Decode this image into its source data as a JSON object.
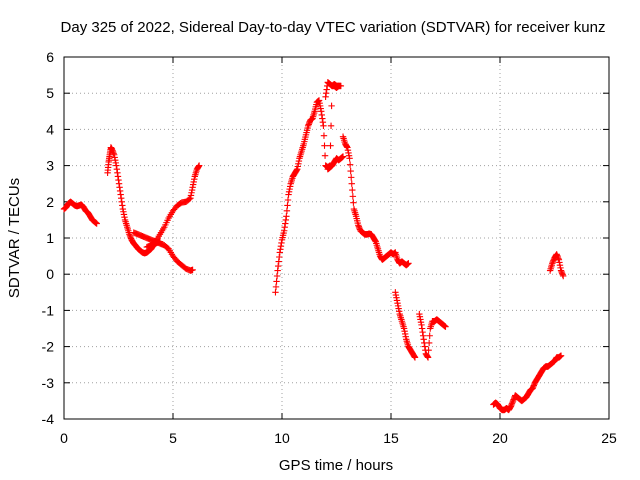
{
  "chart_data": {
    "type": "scatter",
    "title": "Day 325 of 2022, Sidereal Day-to-day VTEC variation (SDTVAR) for receiver kunz",
    "xlabel": "GPS time / hours",
    "ylabel": "SDTVAR / TECUs",
    "xlim": [
      0,
      25
    ],
    "ylim": [
      -4,
      6
    ],
    "xticks": [
      "0",
      "5",
      "10",
      "15",
      "20",
      "25"
    ],
    "yticks": [
      "-4",
      "-3",
      "-2",
      "-1",
      "0",
      "1",
      "2",
      "3",
      "4",
      "5",
      "6"
    ],
    "grid": true,
    "marker": "plus",
    "color": "#ff0000",
    "series": [
      {
        "name": "seg1",
        "x": [
          0.0,
          0.1,
          0.2,
          0.3,
          0.4,
          0.5,
          0.6,
          0.7,
          0.8,
          0.9,
          1.0,
          1.1,
          1.2,
          1.3,
          1.4,
          1.5
        ],
        "y": [
          1.8,
          1.85,
          1.95,
          2.0,
          1.95,
          1.9,
          1.88,
          1.9,
          1.92,
          1.85,
          1.75,
          1.7,
          1.6,
          1.5,
          1.45,
          1.4
        ]
      },
      {
        "name": "seg2",
        "x": [
          2.0,
          2.05,
          2.1,
          2.15,
          2.2,
          2.3,
          2.4,
          2.5,
          2.6,
          2.7,
          2.8,
          2.9,
          3.0,
          3.1,
          3.2,
          3.3,
          3.4,
          3.5,
          3.6,
          3.7,
          3.8,
          3.9,
          4.0,
          4.1,
          4.2,
          4.3,
          4.4
        ],
        "y": [
          2.8,
          3.1,
          3.3,
          3.5,
          3.45,
          3.3,
          3.0,
          2.6,
          2.2,
          1.8,
          1.5,
          1.3,
          1.1,
          0.95,
          0.85,
          0.78,
          0.7,
          0.65,
          0.6,
          0.58,
          0.6,
          0.65,
          0.7,
          0.8,
          0.85,
          0.88,
          0.9
        ]
      },
      {
        "name": "seg3",
        "x": [
          3.2,
          3.4,
          3.6,
          3.8,
          4.0,
          4.2,
          4.4,
          4.6,
          4.8,
          5.0,
          5.2,
          5.4,
          5.6,
          5.8,
          5.9
        ],
        "y": [
          1.15,
          1.1,
          1.05,
          1.0,
          0.95,
          0.9,
          0.85,
          0.8,
          0.7,
          0.5,
          0.35,
          0.25,
          0.15,
          0.1,
          0.12
        ]
      },
      {
        "name": "seg4",
        "x": [
          3.8,
          4.0,
          4.2,
          4.4,
          4.6,
          4.8,
          5.0,
          5.2,
          5.4,
          5.6,
          5.8,
          5.9,
          6.0,
          6.1,
          6.2
        ],
        "y": [
          0.75,
          0.8,
          0.9,
          1.1,
          1.3,
          1.55,
          1.75,
          1.9,
          1.98,
          2.0,
          2.1,
          2.4,
          2.7,
          2.9,
          3.0
        ]
      },
      {
        "name": "seg5",
        "x": [
          9.7,
          9.8,
          9.9,
          10.0,
          10.1,
          10.2,
          10.3,
          10.4,
          10.5,
          10.6,
          10.7,
          10.8,
          10.9,
          11.0,
          11.1,
          11.2,
          11.3,
          11.4,
          11.5,
          11.6,
          11.7,
          11.8,
          11.9,
          12.0,
          12.1,
          12.2,
          12.3,
          12.4,
          12.5,
          12.6
        ],
        "y": [
          -0.5,
          0.1,
          0.6,
          0.95,
          1.2,
          1.6,
          2.2,
          2.5,
          2.7,
          2.8,
          2.9,
          3.2,
          3.4,
          3.6,
          3.85,
          4.1,
          4.25,
          4.3,
          4.5,
          4.75,
          4.8,
          4.5,
          4.1,
          3.0,
          2.95,
          3.0,
          5.2,
          5.25,
          5.2,
          5.2
        ]
      },
      {
        "name": "seg6",
        "x": [
          12.0,
          12.1,
          12.2,
          12.3,
          12.4,
          12.5,
          12.6,
          12.7
        ],
        "y": [
          4.9,
          5.3,
          5.25,
          5.2,
          5.2,
          5.15,
          5.2,
          5.2
        ]
      },
      {
        "name": "seg7",
        "x": [
          12.1,
          12.2,
          12.3,
          12.4,
          12.5,
          12.6,
          12.7,
          12.8
        ],
        "y": [
          2.9,
          2.95,
          3.0,
          3.1,
          3.2,
          3.15,
          3.2,
          3.25
        ]
      },
      {
        "name": "seg8",
        "x": [
          12.8,
          12.9,
          13.0,
          13.1,
          13.2,
          13.3,
          13.4,
          13.5,
          13.6,
          13.7,
          13.8,
          13.9,
          14.0,
          14.1,
          14.2,
          14.3,
          14.4,
          14.5,
          14.6,
          14.7,
          14.8,
          14.9,
          15.0,
          15.1,
          15.2,
          15.3,
          15.4,
          15.5,
          15.6,
          15.7,
          15.8
        ],
        "y": [
          3.8,
          3.6,
          3.5,
          3.2,
          2.5,
          1.8,
          1.6,
          1.35,
          1.2,
          1.15,
          1.1,
          1.1,
          1.12,
          1.1,
          1.0,
          0.9,
          0.7,
          0.5,
          0.4,
          0.45,
          0.5,
          0.55,
          0.6,
          0.55,
          0.6,
          0.4,
          0.3,
          0.35,
          0.3,
          0.25,
          0.3
        ]
      },
      {
        "name": "seg9",
        "x": [
          15.2,
          15.3,
          15.4,
          15.5,
          15.6,
          15.7,
          15.8,
          15.9,
          16.0,
          16.1
        ],
        "y": [
          -0.5,
          -0.8,
          -1.1,
          -1.3,
          -1.5,
          -1.8,
          -2.0,
          -2.1,
          -2.2,
          -2.3
        ]
      },
      {
        "name": "seg10",
        "x": [
          16.3,
          16.4,
          16.5,
          16.6,
          16.7,
          16.8,
          16.9,
          17.0,
          17.1,
          17.2,
          17.3,
          17.4,
          17.5
        ],
        "y": [
          -1.1,
          -1.4,
          -1.8,
          -2.2,
          -2.3,
          -1.5,
          -1.3,
          -1.3,
          -1.25,
          -1.3,
          -1.35,
          -1.4,
          -1.45
        ]
      },
      {
        "name": "seg11",
        "x": [
          19.7,
          19.8,
          19.9,
          20.0,
          20.1,
          20.2,
          20.3,
          20.4,
          20.5,
          20.6,
          20.7,
          20.8,
          20.9,
          21.0,
          21.1,
          21.2,
          21.3,
          21.4,
          21.5,
          21.6,
          21.7,
          21.8,
          21.9,
          22.0,
          22.1,
          22.2,
          22.3,
          22.4,
          22.5,
          22.6,
          22.7,
          22.8
        ],
        "y": [
          -3.6,
          -3.55,
          -3.6,
          -3.7,
          -3.75,
          -3.75,
          -3.7,
          -3.75,
          -3.65,
          -3.5,
          -3.35,
          -3.4,
          -3.45,
          -3.5,
          -3.45,
          -3.4,
          -3.3,
          -3.2,
          -3.15,
          -3.0,
          -2.9,
          -2.8,
          -2.7,
          -2.6,
          -2.55,
          -2.55,
          -2.5,
          -2.45,
          -2.4,
          -2.3,
          -2.3,
          -2.25
        ]
      },
      {
        "name": "seg12",
        "x": [
          22.3,
          22.4,
          22.5,
          22.6,
          22.7,
          22.8,
          22.9
        ],
        "y": [
          0.1,
          0.3,
          0.45,
          0.55,
          0.4,
          0.1,
          -0.05
        ]
      }
    ]
  }
}
